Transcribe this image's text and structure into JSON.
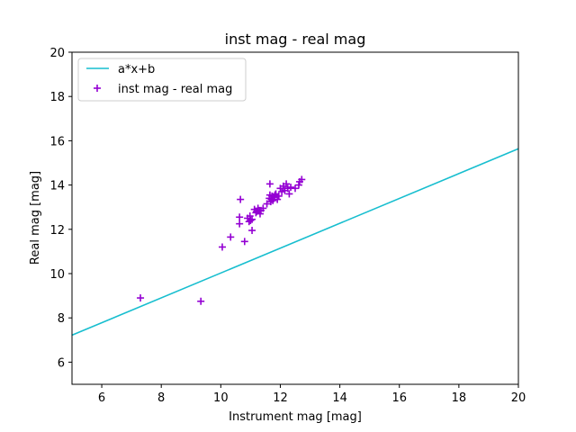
{
  "chart_data": {
    "type": "scatter",
    "title": "inst mag - real mag",
    "xlabel": "Instrument mag [mag]",
    "ylabel": "Real mag [mag]",
    "xlim": [
      5,
      20
    ],
    "ylim": [
      5,
      20
    ],
    "xticks": [
      "6",
      "8",
      "10",
      "12",
      "14",
      "16",
      "18",
      "20"
    ],
    "yticks": [
      "6",
      "8",
      "10",
      "12",
      "14",
      "16",
      "18",
      "20"
    ],
    "grid": false,
    "legend_position": "top-left",
    "series": [
      {
        "name": "a*x+b",
        "kind": "line",
        "color": "#17becf",
        "x": [
          5,
          20
        ],
        "y": [
          7.22,
          15.64
        ]
      },
      {
        "name": "inst mag - real mag",
        "kind": "scatter",
        "marker": "+",
        "color": "#9400d3",
        "x": [
          7.3,
          9.33,
          10.05,
          10.33,
          10.63,
          10.63,
          10.66,
          10.8,
          10.9,
          10.95,
          10.98,
          11.0,
          11.05,
          11.05,
          11.13,
          11.18,
          11.2,
          11.25,
          11.3,
          11.32,
          11.35,
          11.42,
          11.55,
          11.63,
          11.65,
          11.65,
          11.68,
          11.7,
          11.72,
          11.75,
          11.8,
          11.82,
          11.85,
          11.9,
          11.95,
          12.0,
          12.05,
          12.1,
          12.15,
          12.2,
          12.25,
          12.3,
          12.35,
          12.5,
          12.62,
          12.65,
          12.72
        ],
        "y": [
          8.9,
          8.75,
          11.2,
          11.65,
          12.25,
          12.55,
          13.35,
          11.45,
          12.5,
          12.35,
          12.6,
          12.4,
          12.45,
          11.95,
          12.9,
          12.75,
          12.8,
          12.95,
          12.85,
          12.7,
          12.85,
          12.95,
          13.15,
          13.4,
          13.55,
          14.05,
          13.25,
          13.35,
          13.5,
          13.3,
          13.45,
          13.55,
          13.6,
          13.35,
          13.5,
          13.85,
          13.7,
          13.95,
          13.75,
          14.05,
          13.85,
          13.6,
          13.9,
          13.85,
          14.0,
          14.15,
          14.25
        ]
      }
    ]
  }
}
